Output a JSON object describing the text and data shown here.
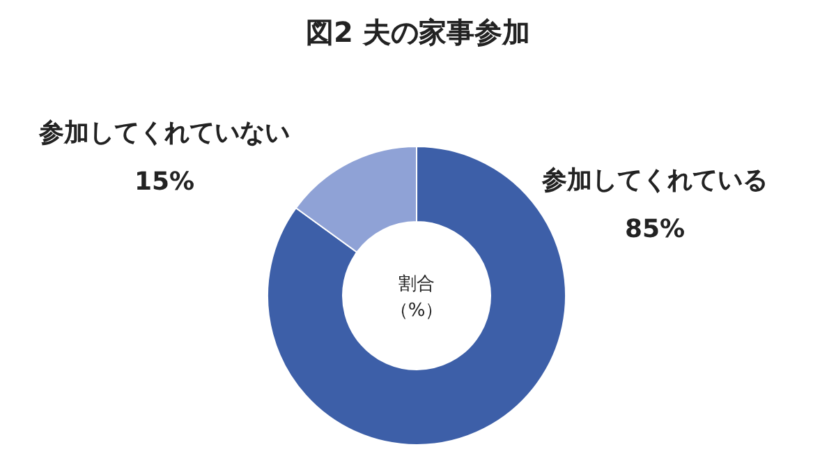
{
  "chart_data": {
    "type": "donut",
    "title": "図2 夫の家事参加",
    "categories": [
      "参加してくれている",
      "参加してくれていない"
    ],
    "values": [
      85,
      15
    ],
    "value_labels": [
      "85%",
      "15%"
    ],
    "colors": [
      "#3d5fa8",
      "#8fa2d6"
    ],
    "annotations": [
      "割合",
      "（%）"
    ]
  }
}
